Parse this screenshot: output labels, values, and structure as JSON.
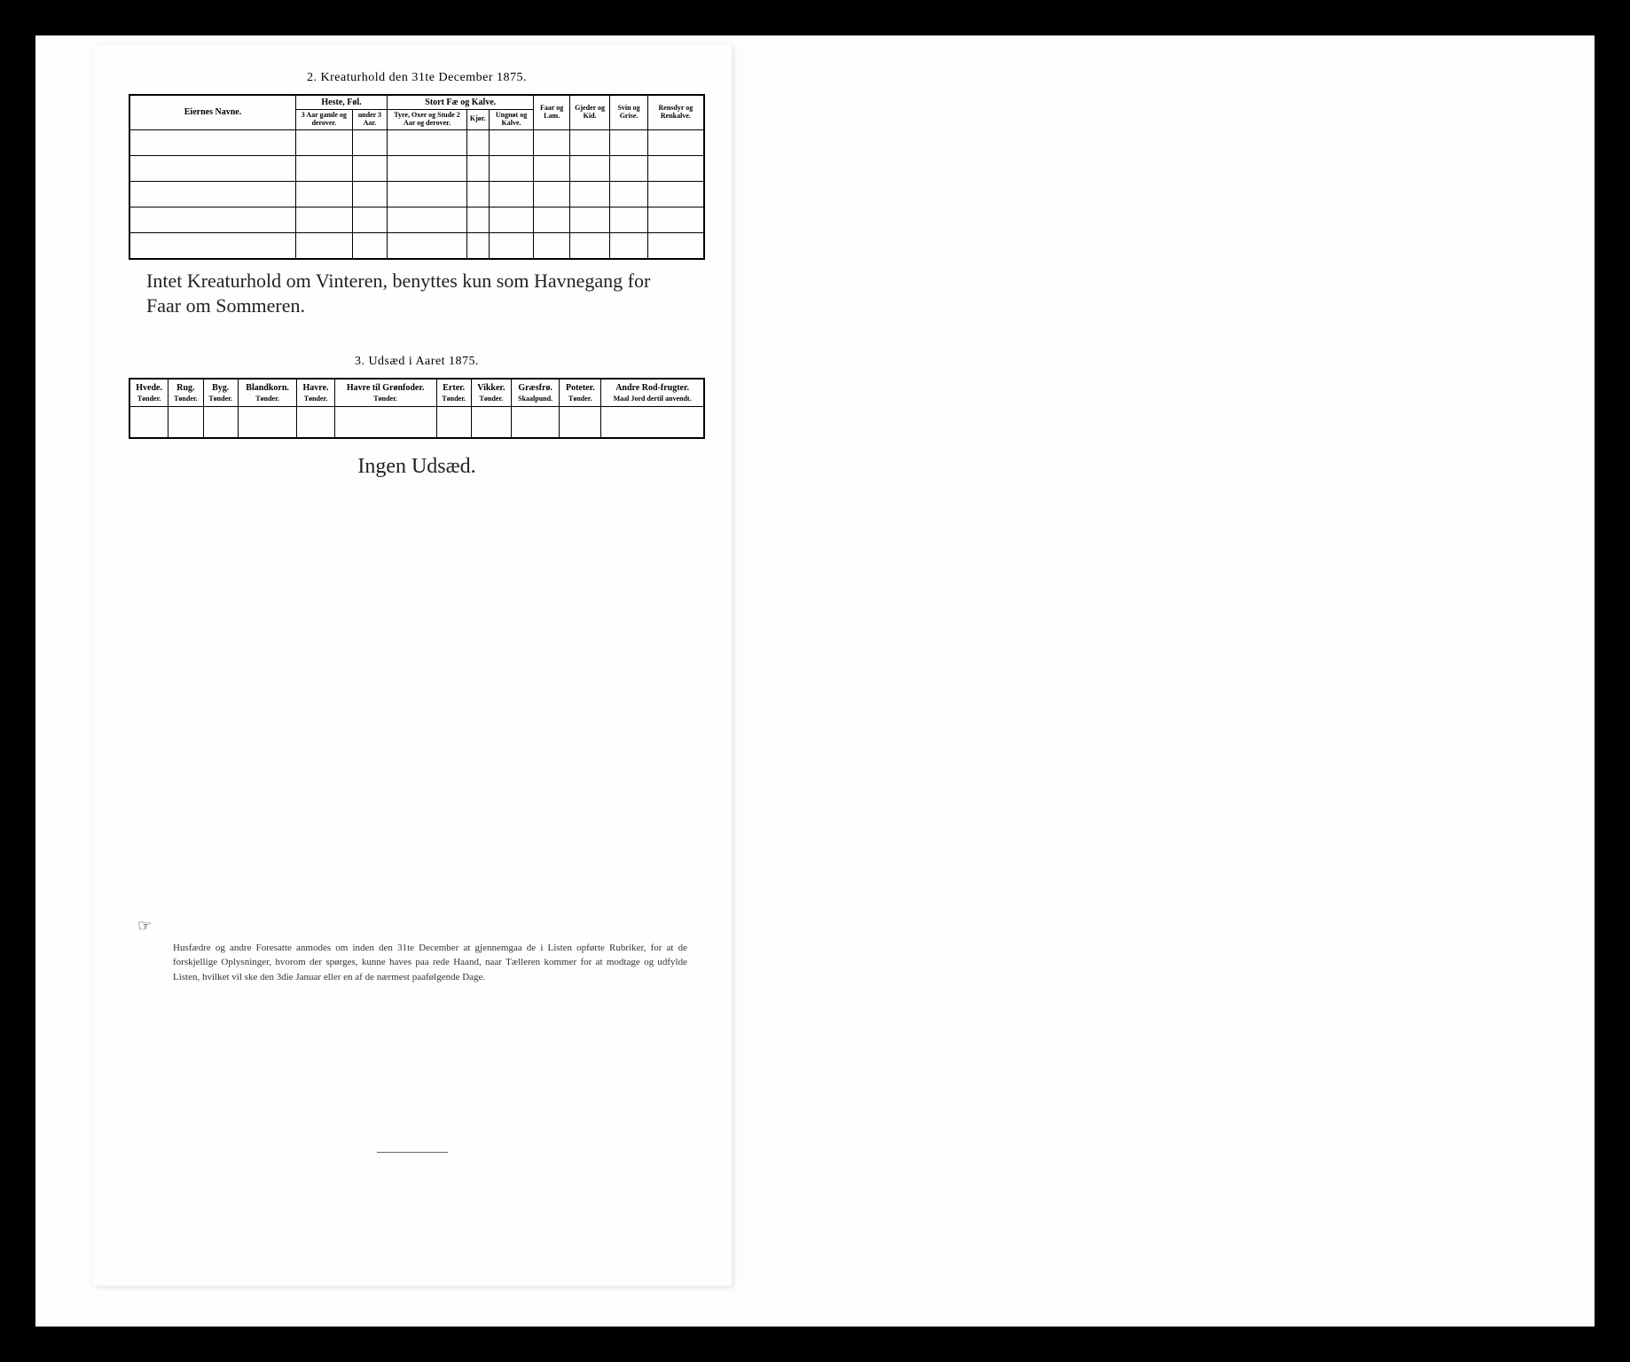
{
  "section2": {
    "title": "2.  Kreaturhold den 31te December 1875.",
    "owner_header": "Eiernes Navne.",
    "groups": {
      "horses": "Heste, Føl.",
      "cattle": "Stort Fæ og Kalve."
    },
    "cols": {
      "horse3plus": "3 Aar gamle og derover.",
      "horseUnder3": "under 3 Aar.",
      "bull": "Tyre, Oxer og Stude 2 Aar og derover.",
      "cow": "Kjør.",
      "young": "Ungnøt og Kalve.",
      "sheep": "Faar og Lam.",
      "goat": "Gjeder og Kid.",
      "pig": "Svin og Grise.",
      "reindeer": "Rensdyr og Renkalve."
    },
    "handwritten": "Intet Kreaturhold om Vinteren, benyttes kun som Havnegang for Faar om Sommeren."
  },
  "section3": {
    "title": "3.  Udsæd i Aaret 1875.",
    "cols": [
      {
        "name": "Hvede.",
        "unit": "Tønder."
      },
      {
        "name": "Rug.",
        "unit": "Tønder."
      },
      {
        "name": "Byg.",
        "unit": "Tønder."
      },
      {
        "name": "Blandkorn.",
        "unit": "Tønder."
      },
      {
        "name": "Havre.",
        "unit": "Tønder."
      },
      {
        "name": "Havre til Grønfoder.",
        "unit": "Tønder."
      },
      {
        "name": "Erter.",
        "unit": "Tønder."
      },
      {
        "name": "Vikker.",
        "unit": "Tønder."
      },
      {
        "name": "Græsfrø.",
        "unit": "Skaalpund."
      },
      {
        "name": "Poteter.",
        "unit": "Tønder."
      },
      {
        "name": "Andre Rod-frugter.",
        "unit": "Maal Jord dertil anvendt."
      }
    ],
    "handwritten": "Ingen Udsæd."
  },
  "footnote": {
    "pointer": "☞",
    "text": "Husfædre og andre Foresatte anmodes om inden den 31te December at gjennemgaa de i Listen opførte Rubriker, for at de forskjellige Oplysninger, hvorom der spørges, kunne haves paa rede Haand, naar Tælleren kommer for at modtage og udfylde Listen, hvilket vil ske den 3die Januar eller en af de nærmest paafølgende Dage."
  }
}
